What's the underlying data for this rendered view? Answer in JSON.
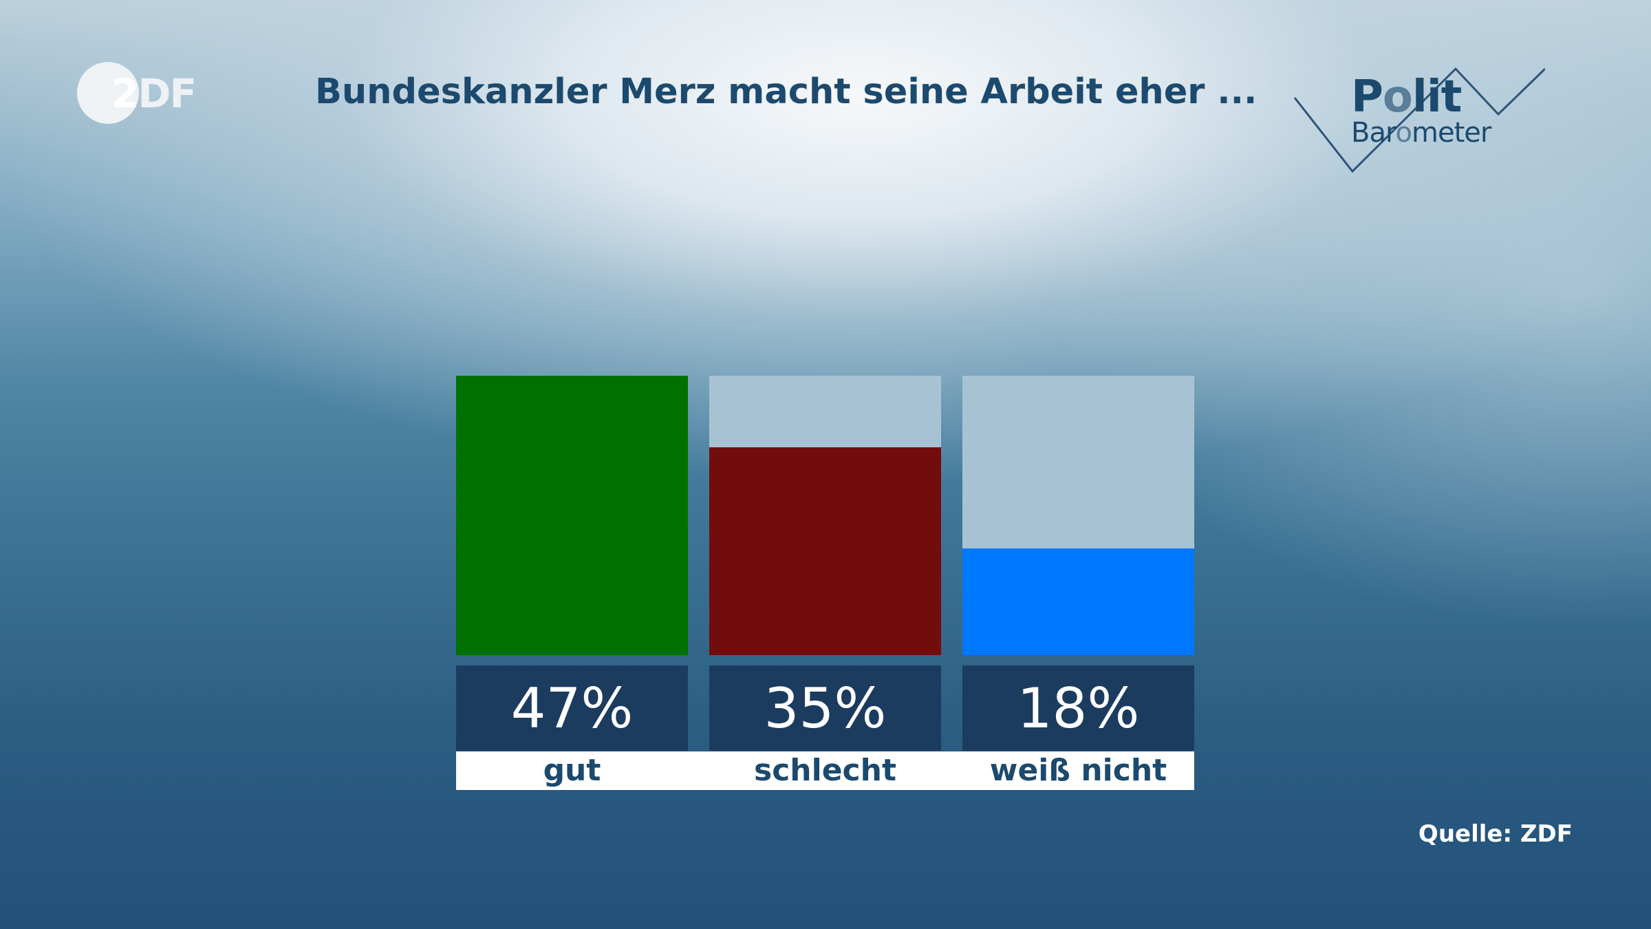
{
  "logo": {
    "zdf_z": "2",
    "zdf_df": "DF"
  },
  "title": "Bundeskanzler Merz macht seine Arbeit eher ...",
  "polit_barometer": {
    "line1_a": "P",
    "line1_b": "o",
    "line1_c": "lit",
    "line2_a": "Bar",
    "line2_b": "o",
    "line2_c": "meter"
  },
  "source": "Quelle: ZDF",
  "chart_data": {
    "type": "bar",
    "categories": [
      "gut",
      "schlecht",
      "weiß nicht"
    ],
    "values": [
      47,
      35,
      18
    ],
    "value_labels": [
      "47%",
      "35%",
      "18%"
    ],
    "unit": "%",
    "ylim": [
      0,
      47
    ],
    "colors": [
      "#007000",
      "#720c0d",
      "#0078ff"
    ],
    "track_color": "#a7c3d3"
  }
}
